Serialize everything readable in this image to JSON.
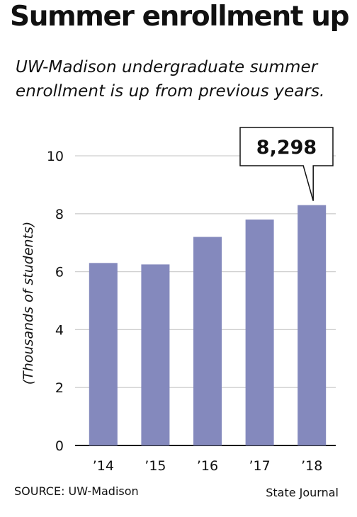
{
  "header": {
    "title": "Summer enrollment up",
    "subtitle": "UW-Madison undergraduate summer enrollment is up from previous years."
  },
  "footer": {
    "source": "SOURCE: UW-Madison",
    "credit": "State Journal"
  },
  "chart_data": {
    "type": "bar",
    "title": "Summer enrollment up",
    "subtitle": "UW-Madison undergraduate summer enrollment is up from previous years.",
    "categories": [
      "’14",
      "’15",
      "’16",
      "’17",
      "’18"
    ],
    "values": [
      6.3,
      6.25,
      7.2,
      7.8,
      8.298
    ],
    "xlabel": "",
    "ylabel": "(Thousands of students)",
    "ylim": [
      0,
      10
    ],
    "yticks": [
      0,
      2,
      4,
      6,
      8,
      10
    ],
    "grid": true,
    "bar_color": "#8489bd",
    "grid_color": "#cfcfcf",
    "annotation": {
      "text": "8,298",
      "category": "’18"
    }
  }
}
